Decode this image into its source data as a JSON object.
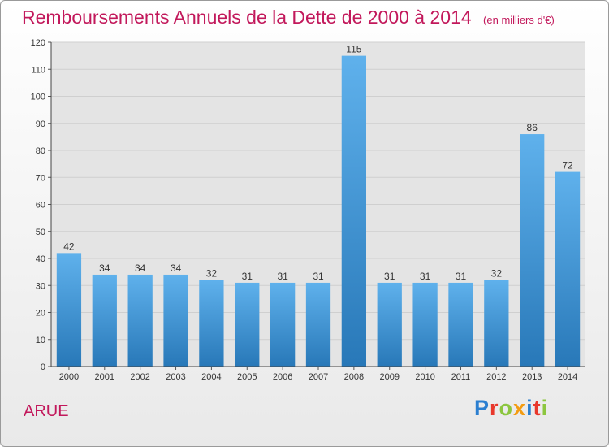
{
  "header": {
    "title": "Remboursements Annuels de la Dette de 2000 à 2014",
    "unit": "(en milliers d'€)"
  },
  "footer": {
    "location": "ARUE",
    "logo_text": "Proxiti"
  },
  "colors": {
    "title": "#c2185b",
    "bar_light": "#5fb1ec",
    "bar_dark": "#2878b8",
    "plot_bg": "#e4e4e4",
    "grid": "#cfcfcf",
    "logo": [
      "#2b7fd0",
      "#e8382c",
      "#8cc63f",
      "#f39c12",
      "#2b7fd0",
      "#e8382c",
      "#8cc63f"
    ]
  },
  "chart_data": {
    "type": "bar",
    "title": "Remboursements Annuels de la Dette de 2000 à 2014",
    "unit": "(en milliers d'€)",
    "categories": [
      "2000",
      "2001",
      "2002",
      "2003",
      "2004",
      "2005",
      "2006",
      "2007",
      "2008",
      "2009",
      "2010",
      "2011",
      "2012",
      "2013",
      "2014"
    ],
    "values": [
      42,
      34,
      34,
      34,
      32,
      31,
      31,
      31,
      115,
      31,
      31,
      31,
      32,
      86,
      72
    ],
    "ylim": [
      0,
      120
    ],
    "yticks": [
      0,
      10,
      20,
      30,
      40,
      50,
      60,
      70,
      80,
      90,
      100,
      110,
      120
    ],
    "grid": true,
    "legend": "none",
    "data_labels": true
  }
}
